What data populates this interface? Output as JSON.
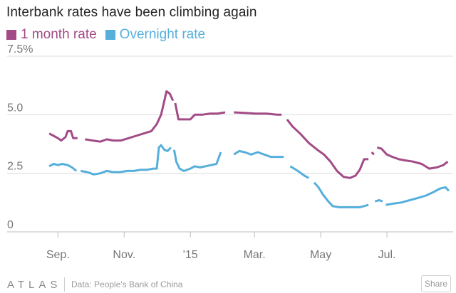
{
  "title": "Interbank rates have been climbing again",
  "footer": {
    "brand": "ATLAS",
    "source": "Data: People's Bank of China",
    "share_label": "Share"
  },
  "colors": {
    "one_month": "#a24b86",
    "overnight": "#56afdb",
    "grid": "#dcdcdc",
    "axis_text": "#777777"
  },
  "chart_data": {
    "type": "line",
    "title": "Interbank rates have been climbing again",
    "xlabel": "",
    "ylabel": "",
    "ylim": [
      0,
      7.5
    ],
    "y_ticks": [
      {
        "value": 0,
        "label": "0"
      },
      {
        "value": 2.5,
        "label": "2.5"
      },
      {
        "value": 5,
        "label": "5.0"
      },
      {
        "value": 7.5,
        "label": "7.5%"
      }
    ],
    "x_range": [
      "2014-08-18",
      "2015-08-31"
    ],
    "x_ticks": [
      {
        "date": "2014-09-01",
        "label": "Sep."
      },
      {
        "date": "2014-11-01",
        "label": "Nov."
      },
      {
        "date": "2015-01-01",
        "label": "'15"
      },
      {
        "date": "2015-03-01",
        "label": "Mar."
      },
      {
        "date": "2015-05-01",
        "label": "May"
      },
      {
        "date": "2015-07-01",
        "label": "Jul."
      }
    ],
    "grid": true,
    "legend_position": "top-left",
    "series": [
      {
        "name": "1 month rate",
        "color": "#a24b86",
        "segments": [
          [
            [
              "2014-08-24",
              4.2
            ],
            [
              "2014-08-28",
              4.1
            ],
            [
              "2014-09-01",
              4.0
            ],
            [
              "2014-09-04",
              3.9
            ],
            [
              "2014-09-08",
              4.05
            ],
            [
              "2014-09-10",
              4.3
            ],
            [
              "2014-09-13",
              4.3
            ],
            [
              "2014-09-15",
              4.0
            ],
            [
              "2014-09-19",
              4.0
            ]
          ],
          [
            [
              "2014-09-26",
              3.95
            ],
            [
              "2014-10-03",
              3.9
            ],
            [
              "2014-10-10",
              3.85
            ],
            [
              "2014-10-16",
              3.95
            ],
            [
              "2014-10-22",
              3.9
            ],
            [
              "2014-10-29",
              3.9
            ],
            [
              "2014-11-05",
              4.0
            ],
            [
              "2014-11-12",
              4.1
            ],
            [
              "2014-11-19",
              4.2
            ],
            [
              "2014-11-26",
              4.3
            ],
            [
              "2014-12-01",
              4.6
            ],
            [
              "2014-12-05",
              5.0
            ],
            [
              "2014-12-08",
              5.6
            ],
            [
              "2014-12-10",
              6.0
            ],
            [
              "2014-12-13",
              5.9
            ],
            [
              "2014-12-16",
              5.6
            ]
          ],
          [
            [
              "2014-12-18",
              5.5
            ],
            [
              "2014-12-21",
              4.8
            ],
            [
              "2014-12-25",
              4.8
            ],
            [
              "2015-01-01",
              4.8
            ],
            [
              "2015-01-05",
              5.0
            ],
            [
              "2015-01-12",
              5.0
            ],
            [
              "2015-01-19",
              5.05
            ],
            [
              "2015-01-26",
              5.05
            ],
            [
              "2015-02-02",
              5.1
            ]
          ],
          [
            [
              "2015-02-10",
              5.1
            ],
            [
              "2015-02-20",
              5.08
            ],
            [
              "2015-03-02",
              5.05
            ],
            [
              "2015-03-12",
              5.05
            ],
            [
              "2015-03-22",
              5.0
            ],
            [
              "2015-03-26",
              5.0
            ]
          ],
          [
            [
              "2015-03-31",
              4.8
            ],
            [
              "2015-04-05",
              4.5
            ],
            [
              "2015-04-12",
              4.2
            ],
            [
              "2015-04-20",
              3.8
            ],
            [
              "2015-04-28",
              3.5
            ],
            [
              "2015-05-04",
              3.3
            ],
            [
              "2015-05-10",
              3.0
            ],
            [
              "2015-05-16",
              2.6
            ],
            [
              "2015-05-22",
              2.35
            ],
            [
              "2015-05-28",
              2.3
            ],
            [
              "2015-06-02",
              2.4
            ],
            [
              "2015-06-06",
              2.65
            ],
            [
              "2015-06-10",
              3.1
            ],
            [
              "2015-06-14",
              3.1
            ]
          ],
          [
            [
              "2015-06-17",
              3.4
            ],
            [
              "2015-06-19",
              3.3
            ]
          ],
          [
            [
              "2015-06-22",
              3.6
            ],
            [
              "2015-06-26",
              3.55
            ],
            [
              "2015-07-01",
              3.3
            ],
            [
              "2015-07-06",
              3.2
            ],
            [
              "2015-07-12",
              3.1
            ],
            [
              "2015-07-18",
              3.05
            ],
            [
              "2015-07-25",
              3.0
            ],
            [
              "2015-08-02",
              2.9
            ],
            [
              "2015-08-09",
              2.7
            ],
            [
              "2015-08-16",
              2.75
            ],
            [
              "2015-08-22",
              2.85
            ],
            [
              "2015-08-26",
              3.0
            ]
          ]
        ]
      },
      {
        "name": "Overnight rate",
        "color": "#56afdb",
        "segments": [
          [
            [
              "2014-08-24",
              2.8
            ],
            [
              "2014-08-28",
              2.9
            ],
            [
              "2014-09-01",
              2.85
            ],
            [
              "2014-09-05",
              2.9
            ],
            [
              "2014-09-10",
              2.85
            ],
            [
              "2014-09-14",
              2.75
            ],
            [
              "2014-09-18",
              2.6
            ]
          ],
          [
            [
              "2014-09-22",
              2.6
            ],
            [
              "2014-09-28",
              2.55
            ],
            [
              "2014-10-04",
              2.45
            ],
            [
              "2014-10-10",
              2.5
            ],
            [
              "2014-10-16",
              2.6
            ],
            [
              "2014-10-22",
              2.55
            ],
            [
              "2014-10-28",
              2.55
            ],
            [
              "2014-11-04",
              2.6
            ],
            [
              "2014-11-10",
              2.6
            ],
            [
              "2014-11-16",
              2.65
            ],
            [
              "2014-11-22",
              2.65
            ],
            [
              "2014-11-28",
              2.7
            ],
            [
              "2014-12-01",
              2.7
            ],
            [
              "2014-12-03",
              3.6
            ],
            [
              "2014-12-05",
              3.7
            ],
            [
              "2014-12-08",
              3.5
            ],
            [
              "2014-12-11",
              3.45
            ],
            [
              "2014-12-14",
              3.6
            ]
          ],
          [
            [
              "2014-12-17",
              3.5
            ],
            [
              "2014-12-19",
              3.0
            ],
            [
              "2014-12-22",
              2.7
            ],
            [
              "2014-12-26",
              2.6
            ],
            [
              "2015-01-01",
              2.7
            ],
            [
              "2015-01-05",
              2.8
            ],
            [
              "2015-01-10",
              2.75
            ],
            [
              "2015-01-15",
              2.8
            ],
            [
              "2015-01-20",
              2.85
            ],
            [
              "2015-01-25",
              2.9
            ],
            [
              "2015-01-29",
              3.4
            ]
          ],
          [
            [
              "2015-02-10",
              3.3
            ],
            [
              "2015-02-15",
              3.45
            ],
            [
              "2015-02-20",
              3.4
            ],
            [
              "2015-02-26",
              3.3
            ],
            [
              "2015-03-04",
              3.4
            ],
            [
              "2015-03-10",
              3.3
            ],
            [
              "2015-03-16",
              3.2
            ],
            [
              "2015-03-22",
              3.2
            ],
            [
              "2015-03-28",
              3.2
            ]
          ],
          [
            [
              "2015-04-03",
              2.8
            ],
            [
              "2015-04-10",
              2.6
            ],
            [
              "2015-04-16",
              2.4
            ],
            [
              "2015-04-20",
              2.3
            ]
          ],
          [
            [
              "2015-04-25",
              2.1
            ],
            [
              "2015-04-29",
              1.9
            ],
            [
              "2015-05-03",
              1.6
            ],
            [
              "2015-05-08",
              1.3
            ],
            [
              "2015-05-12",
              1.1
            ],
            [
              "2015-05-18",
              1.05
            ],
            [
              "2015-05-28",
              1.05
            ],
            [
              "2015-06-06",
              1.05
            ],
            [
              "2015-06-10",
              1.1
            ],
            [
              "2015-06-14",
              1.15
            ]
          ],
          [
            [
              "2015-06-20",
              1.3
            ],
            [
              "2015-06-24",
              1.35
            ],
            [
              "2015-06-27",
              1.3
            ]
          ],
          [
            [
              "2015-06-30",
              1.15
            ],
            [
              "2015-07-06",
              1.2
            ],
            [
              "2015-07-14",
              1.25
            ],
            [
              "2015-07-22",
              1.35
            ],
            [
              "2015-07-30",
              1.45
            ],
            [
              "2015-08-06",
              1.55
            ],
            [
              "2015-08-13",
              1.7
            ],
            [
              "2015-08-19",
              1.85
            ],
            [
              "2015-08-24",
              1.9
            ],
            [
              "2015-08-27",
              1.75
            ]
          ]
        ]
      }
    ]
  }
}
